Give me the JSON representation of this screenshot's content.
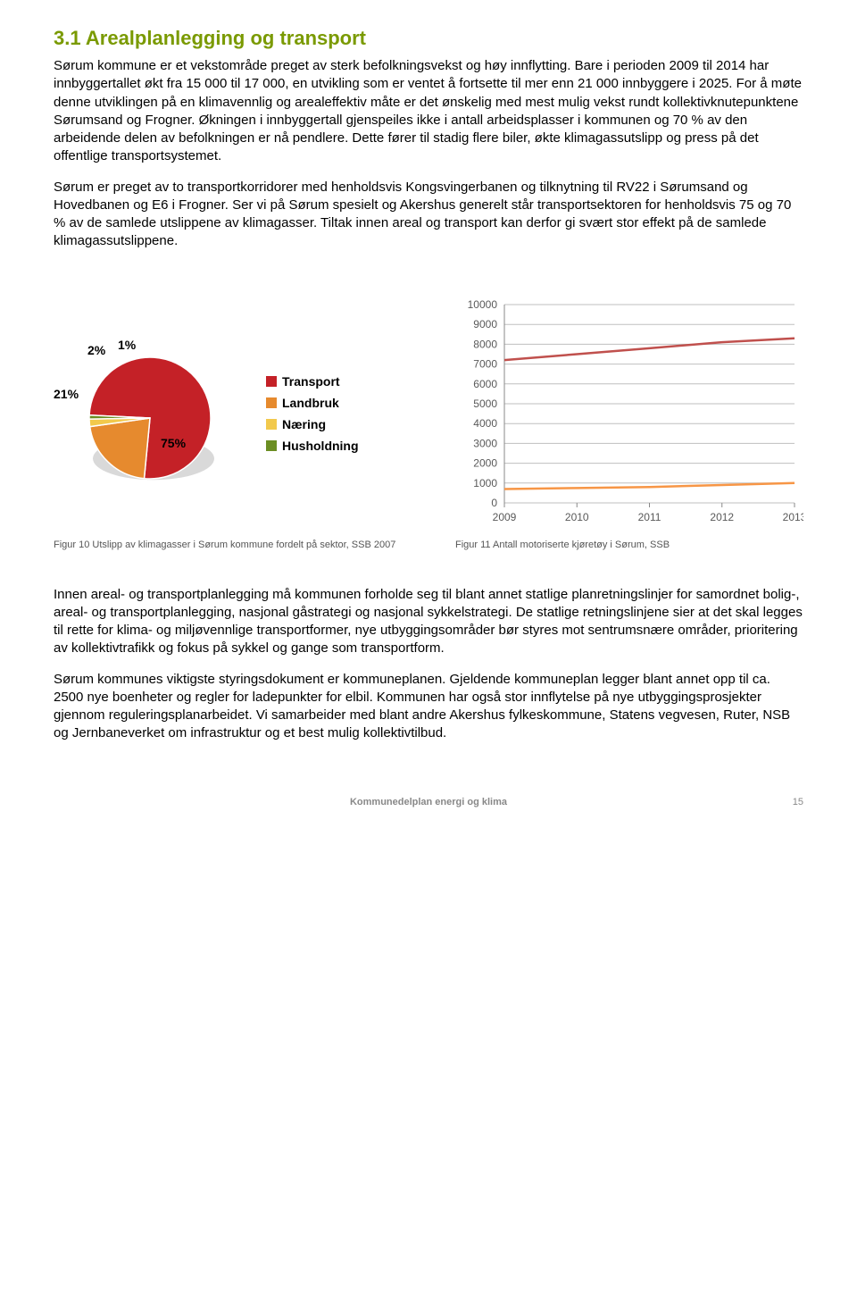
{
  "heading": {
    "text": "3.1 Arealplanlegging og transport",
    "color": "#7a9a01"
  },
  "paragraphs": {
    "p1": "Sørum kommune er et vekstområde preget av sterk befolkningsvekst og høy innflytting. Bare i perioden 2009 til 2014 har innbyggertallet økt fra 15 000 til 17 000, en utvikling som er ventet å fortsette til mer enn 21 000 innbyggere i 2025. For å møte denne utviklingen på en klimavennlig og arealeffektiv måte er det ønskelig med mest mulig vekst rundt kollektivknutepunktene Sørumsand og Frogner. Økningen i innbyggertall gjenspeiles ikke i antall arbeidsplasser i kommunen og 70 % av den arbeidende delen av befolkningen er nå pendlere. Dette fører til stadig flere biler, økte klimagassutslipp og press på det offentlige transportsystemet.",
    "p2": "Sørum er preget av to transportkorridorer med henholdsvis Kongsvingerbanen og tilknytning til RV22 i Sørumsand og Hovedbanen og E6 i Frogner. Ser vi på Sørum spesielt og Akershus generelt står transportsektoren for henholdsvis 75 og 70 % av de samlede utslippene av klimagasser. Tiltak innen areal og transport kan derfor gi svært stor effekt på de samlede klimagassutslippene.",
    "p3": "Innen areal- og transportplanlegging må kommunen forholde seg til blant annet statlige planretningslinjer for samordnet bolig-, areal- og transportplanlegging, nasjonal gåstrategi og nasjonal sykkelstrategi. De statlige retningslinjene sier at det skal legges til rette for klima- og miljøvennlige transportformer, nye utbyggingsområder bør styres mot sentrumsnære områder, prioritering av kollektivtrafikk og fokus på sykkel og gange som transportform.",
    "p4": "Sørum kommunes viktigste styringsdokument er kommuneplanen. Gjeldende kommuneplan legger blant annet opp til ca. 2500 nye boenheter og regler for ladepunkter for elbil. Kommunen har også stor innflytelse på nye utbyggingsprosjekter gjennom reguleringsplanarbeidet. Vi samarbeider med blant andre Akershus fylkeskommune, Statens vegvesen, Ruter, NSB og Jernbaneverket om infrastruktur og et best mulig kollektivtilbud."
  },
  "pie_chart": {
    "type": "pie",
    "slices": [
      {
        "label": "Transport",
        "value": 75,
        "color": "#c42127",
        "display": "75%"
      },
      {
        "label": "Landbruk",
        "value": 21,
        "color": "#e68a2e",
        "display": "21%"
      },
      {
        "label": "Næring",
        "value": 2,
        "color": "#f2c94c",
        "display": "2%"
      },
      {
        "label": "Husholdning",
        "value": 1,
        "color": "#6b8e23",
        "display": "1%"
      }
    ],
    "label_fontsize": 14,
    "label_fontweight": "bold",
    "shadow_color": "#d9d9d9",
    "edge_color": "#ffffff",
    "background": "#ffffff"
  },
  "legend": {
    "items": [
      {
        "label": "Transport",
        "color": "#c42127"
      },
      {
        "label": "Landbruk",
        "color": "#e68a2e"
      },
      {
        "label": "Næring",
        "color": "#f2c94c"
      },
      {
        "label": "Husholdning",
        "color": "#6b8e23"
      }
    ],
    "fontsize": 14,
    "fontweight": "bold"
  },
  "line_chart": {
    "type": "line",
    "x_categories": [
      "2009",
      "2010",
      "2011",
      "2012",
      "2013"
    ],
    "ylim": [
      0,
      10000
    ],
    "ytick_step": 1000,
    "yticks": [
      "0",
      "1000",
      "2000",
      "3000",
      "4000",
      "5000",
      "6000",
      "7000",
      "8000",
      "9000",
      "10000"
    ],
    "series": [
      {
        "name": "upper",
        "color": "#c0504d",
        "width": 2.5,
        "values": [
          7200,
          7500,
          7800,
          8100,
          8300
        ]
      },
      {
        "name": "lower",
        "color": "#f79646",
        "width": 2.5,
        "values": [
          700,
          750,
          800,
          900,
          1000
        ]
      }
    ],
    "grid_color": "#bfbfbf",
    "axis_color": "#888888",
    "tick_fontsize": 12,
    "tick_color": "#595959",
    "background": "#ffffff"
  },
  "captions": {
    "left": "Figur 10 Utslipp av klimagasser i Sørum kommune fordelt på sektor, SSB 2007",
    "right": "Figur 11 Antall motoriserte kjøretøy i Sørum, SSB"
  },
  "footer": {
    "center": "Kommunedelplan energi og klima",
    "page": "15"
  }
}
